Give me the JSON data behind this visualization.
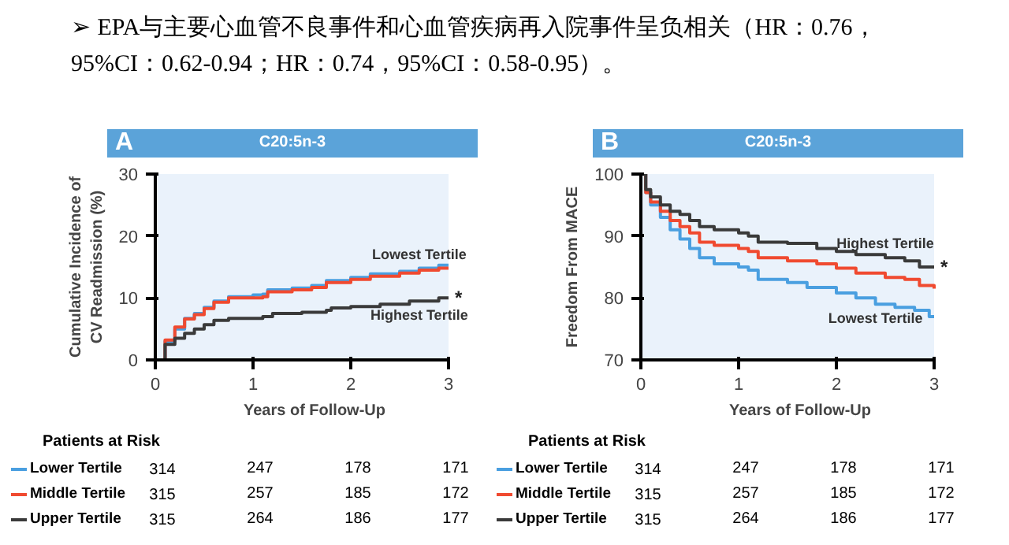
{
  "chart_data": [
    {
      "type": "other",
      "title": "➢ EPA与主要心血管不良事件和心血管疾病再入院事件呈负相关（HR：0.76，95%CI：0.62-0.94；HR：0.74，95%CI：0.58-0.95）。"
    },
    {
      "type": "step",
      "title": "C20:5n-3",
      "subtitle": "A",
      "xlabel": "Years of Follow-Up",
      "ylabel": "Cumulative Incidence of\nCV Readmission (%)",
      "xlim": [
        0,
        3
      ],
      "ylim": [
        0,
        30
      ],
      "xticks": [
        0,
        1,
        2,
        3
      ],
      "yticks": [
        0,
        10,
        20,
        30
      ],
      "grid": false,
      "legend": "bottom",
      "series": [
        {
          "name": "Lower Tertile",
          "color": "#4a9fe0",
          "x": [
            0,
            0.1,
            0.2,
            0.3,
            0.4,
            0.5,
            0.6,
            0.75,
            1.0,
            1.1,
            1.15,
            1.4,
            1.6,
            1.75,
            2.0,
            2.2,
            2.5,
            2.7,
            2.9,
            3.0
          ],
          "values": [
            0,
            3,
            5,
            6.7,
            7.5,
            8.5,
            9.5,
            10.2,
            10.5,
            10.6,
            11.3,
            11.6,
            12,
            12.8,
            13.3,
            13.9,
            14.3,
            14.8,
            15.3,
            15.3
          ]
        },
        {
          "name": "Middle Tertile",
          "color": "#f04a30",
          "x": [
            0,
            0.1,
            0.2,
            0.3,
            0.4,
            0.5,
            0.6,
            0.75,
            1.0,
            1.1,
            1.15,
            1.4,
            1.6,
            1.75,
            2.0,
            2.2,
            2.5,
            2.7,
            2.9,
            3.0
          ],
          "values": [
            0,
            3.2,
            5.3,
            6.6,
            7.3,
            8.3,
            9.3,
            10,
            10,
            10.2,
            11,
            11.3,
            11.7,
            12.5,
            13,
            13.5,
            14,
            14.5,
            14.8,
            14.8
          ]
        },
        {
          "name": "Upper Tertile",
          "color": "#3a3a3a",
          "x": [
            0,
            0.1,
            0.2,
            0.3,
            0.4,
            0.5,
            0.6,
            0.75,
            1.0,
            1.1,
            1.2,
            1.5,
            1.75,
            1.8,
            2.0,
            2.3,
            2.6,
            2.9,
            3.0
          ],
          "values": [
            0,
            2.5,
            3.5,
            4.3,
            5,
            5.7,
            6.4,
            6.7,
            6.7,
            7.0,
            7.5,
            7.7,
            8.0,
            8.4,
            8.6,
            9.0,
            9.5,
            10,
            10
          ]
        }
      ],
      "annotations": [
        {
          "text": "Lowest Tertile",
          "x": 2.7,
          "y": 14.8
        },
        {
          "text": "Highest Tertile",
          "x": 2.7,
          "y": 9.5
        },
        {
          "text": "*",
          "x": 3,
          "y": 10
        },
        "Patients at Risk",
        "314",
        "247",
        "178",
        "171",
        "315",
        "257",
        "185",
        "172",
        "315",
        "264",
        "186",
        "177"
      ]
    },
    {
      "type": "step",
      "title": "C20:5n-3",
      "subtitle": "B",
      "xlabel": "Years of Follow-Up",
      "ylabel": "Freedom From MACE",
      "xlim": [
        0,
        3
      ],
      "ylim": [
        70,
        100
      ],
      "xticks": [
        0,
        1,
        2,
        3
      ],
      "yticks": [
        70,
        80,
        90,
        100
      ],
      "grid": false,
      "legend": "bottom",
      "series": [
        {
          "name": "Lower Tertile",
          "color": "#4a9fe0",
          "x": [
            0,
            0.05,
            0.1,
            0.2,
            0.3,
            0.4,
            0.5,
            0.6,
            0.75,
            1.0,
            1.1,
            1.2,
            1.5,
            1.7,
            2.0,
            2.2,
            2.4,
            2.6,
            2.8,
            2.95,
            3.0
          ],
          "values": [
            100,
            97,
            95,
            93,
            91,
            89.5,
            88,
            86.5,
            85.5,
            85,
            84.5,
            83,
            82.5,
            81.7,
            80.8,
            80,
            79,
            78.5,
            78,
            77,
            77
          ]
        },
        {
          "name": "Middle Tertile",
          "color": "#f04a30",
          "x": [
            0,
            0.05,
            0.1,
            0.2,
            0.3,
            0.4,
            0.5,
            0.6,
            0.75,
            1.0,
            1.1,
            1.2,
            1.5,
            1.8,
            2.0,
            2.2,
            2.5,
            2.7,
            2.85,
            3.0
          ],
          "values": [
            100,
            97,
            95.5,
            94,
            92.5,
            91.5,
            90.5,
            89,
            88.5,
            88,
            87.5,
            86.5,
            86,
            85.5,
            84.8,
            84,
            83.3,
            83,
            82,
            81.5
          ]
        },
        {
          "name": "Upper Tertile",
          "color": "#3a3a3a",
          "x": [
            0,
            0.05,
            0.1,
            0.2,
            0.3,
            0.4,
            0.5,
            0.6,
            0.75,
            1.0,
            1.1,
            1.2,
            1.5,
            1.8,
            2.0,
            2.2,
            2.5,
            2.7,
            2.85,
            3.0
          ],
          "values": [
            100,
            97.5,
            96.3,
            95,
            94,
            93.5,
            92.5,
            91.5,
            91,
            90.5,
            90,
            89,
            88.8,
            88,
            87.5,
            87,
            86.5,
            86,
            85,
            85
          ]
        }
      ],
      "annotations": [
        {
          "text": "Highest Tertile",
          "x": 2.5,
          "y": 86.5
        },
        {
          "text": "Lowest Tertile",
          "x": 2.4,
          "y": 79
        },
        {
          "text": "*",
          "x": 3,
          "y": 85
        },
        "Patients at Risk",
        "314",
        "247",
        "178",
        "171",
        "315",
        "257",
        "185",
        "172",
        "315",
        "264",
        "186",
        "177"
      ]
    }
  ]
}
